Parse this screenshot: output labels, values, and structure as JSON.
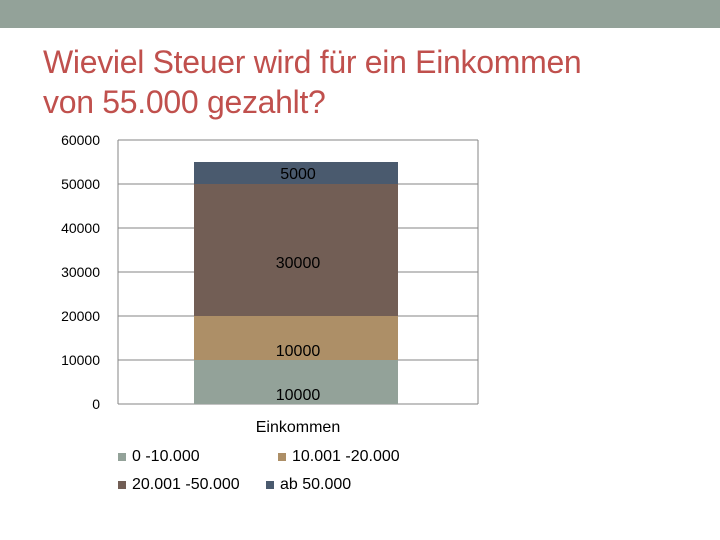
{
  "slide": {
    "title_line1": "Wieviel Steuer wird für ein Einkommen",
    "title_line2": "von 55.000 gezahlt?"
  },
  "colors": {
    "top_band": "#93a299",
    "title": "#c0504d"
  },
  "chart_data": {
    "type": "bar",
    "stacked": true,
    "categories": [
      "Einkommen"
    ],
    "series": [
      {
        "name": "0 -10.000",
        "values": [
          10000
        ],
        "label": "10000",
        "color": "#93a299"
      },
      {
        "name": "10.001 -20.000",
        "values": [
          10000
        ],
        "label": "10000",
        "color": "#ad8f67"
      },
      {
        "name": "20.001 -50.000",
        "values": [
          30000
        ],
        "label": "30000",
        "color": "#725e55"
      },
      {
        "name": "ab 50.000",
        "values": [
          5000
        ],
        "label": "5000",
        "color": "#4a5a6e"
      }
    ],
    "y_ticks": [
      "0",
      "10000",
      "20000",
      "30000",
      "40000",
      "50000",
      "60000"
    ],
    "ylim": [
      0,
      60000
    ],
    "grid": true,
    "legend_position": "bottom"
  }
}
